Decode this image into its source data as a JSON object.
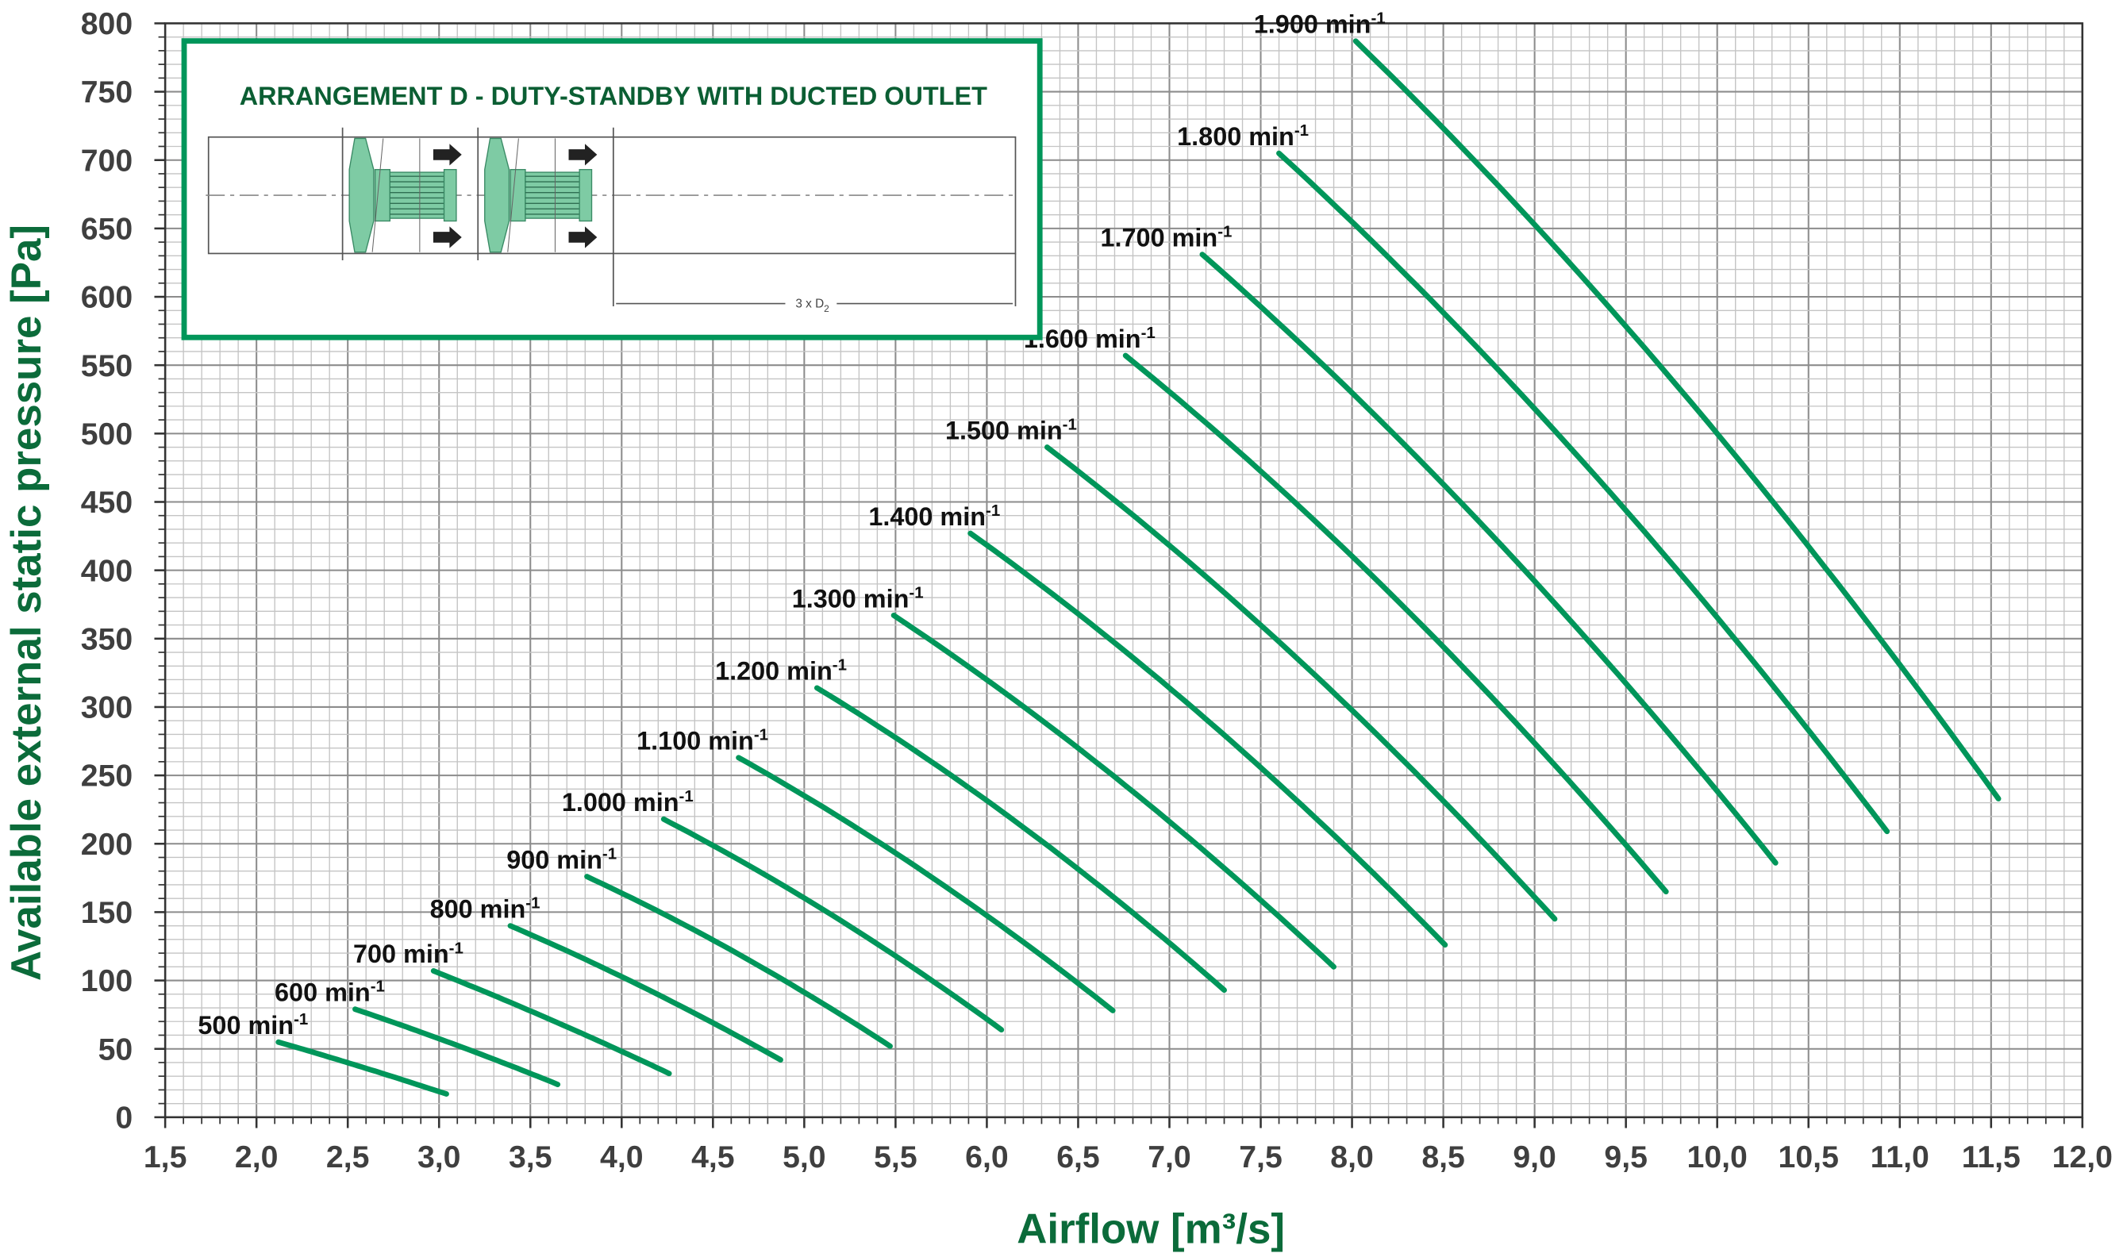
{
  "chart_data": {
    "type": "line",
    "xlabel": "Airflow [m³/s]",
    "ylabel": "Available external static pressure [Pa]",
    "xlim": [
      1.5,
      12.0
    ],
    "ylim": [
      0,
      800
    ],
    "x_ticks": [
      "1,5",
      "2,0",
      "2,5",
      "3,0",
      "3,5",
      "4,0",
      "4,5",
      "5,0",
      "5,5",
      "6,0",
      "6,5",
      "7,0",
      "7,5",
      "8,0",
      "8,5",
      "9,0",
      "9,5",
      "10,0",
      "10,5",
      "11,0",
      "11,5",
      "12,0"
    ],
    "y_ticks": [
      "0",
      "50",
      "100",
      "150",
      "200",
      "250",
      "300",
      "350",
      "400",
      "450",
      "500",
      "550",
      "600",
      "650",
      "700",
      "750",
      "800"
    ],
    "grid": true,
    "line_color": "#00965a",
    "series": [
      {
        "name": "500 min-1",
        "label": "500 min",
        "sup": "-1",
        "x": [
          2.12,
          2.57,
          3.04
        ],
        "y": [
          55,
          37,
          17
        ]
      },
      {
        "name": "600 min-1",
        "label": "600 min",
        "sup": "-1",
        "x": [
          2.54,
          3.09,
          3.65
        ],
        "y": [
          79,
          53,
          24
        ]
      },
      {
        "name": "700 min-1",
        "label": "700 min",
        "sup": "-1",
        "x": [
          2.97,
          3.6,
          4.26
        ],
        "y": [
          107,
          72,
          32
        ]
      },
      {
        "name": "800 min-1",
        "label": "800 min",
        "sup": "-1",
        "x": [
          3.39,
          4.12,
          4.87
        ],
        "y": [
          140,
          95,
          42
        ]
      },
      {
        "name": "900 min-1",
        "label": "900 min",
        "sup": "-1",
        "x": [
          3.81,
          4.63,
          5.47
        ],
        "y": [
          176,
          120,
          52
        ]
      },
      {
        "name": "1.000 min-1",
        "label": "1.000 min",
        "sup": "-1",
        "x": [
          4.23,
          5.15,
          6.08
        ],
        "y": [
          218,
          148,
          64
        ]
      },
      {
        "name": "1.100 min-1",
        "label": "1.100 min",
        "sup": "-1",
        "x": [
          4.64,
          5.66,
          6.69
        ],
        "y": [
          263,
          179,
          78
        ]
      },
      {
        "name": "1.200 min-1",
        "label": "1.200 min",
        "sup": "-1",
        "x": [
          5.07,
          6.18,
          7.3
        ],
        "y": [
          314,
          214,
          93
        ]
      },
      {
        "name": "1.300 min-1",
        "label": "1.300 min",
        "sup": "-1",
        "x": [
          5.49,
          6.69,
          7.9
        ],
        "y": [
          367,
          250,
          110
        ]
      },
      {
        "name": "1.400 min-1",
        "label": "1.400 min",
        "sup": "-1",
        "x": [
          5.91,
          7.21,
          8.51
        ],
        "y": [
          427,
          290,
          126
        ]
      },
      {
        "name": "1.500 min-1",
        "label": "1.500 min",
        "sup": "-1",
        "x": [
          6.33,
          7.72,
          9.11
        ],
        "y": [
          490,
          333,
          145
        ]
      },
      {
        "name": "1.600 min-1",
        "label": "1.600 min",
        "sup": "-1",
        "x": [
          6.76,
          8.24,
          9.72
        ],
        "y": [
          557,
          379,
          165
        ]
      },
      {
        "name": "1.700 min-1",
        "label": "1.700 min",
        "sup": "-1",
        "x": [
          7.18,
          8.75,
          10.32
        ],
        "y": [
          631,
          428,
          186
        ]
      },
      {
        "name": "1.800 min-1",
        "label": "1.800 min",
        "sup": "-1",
        "x": [
          7.6,
          9.26,
          10.93
        ],
        "y": [
          705,
          480,
          209
        ]
      },
      {
        "name": "1.900 min-1",
        "label": "1.900 min",
        "sup": "-1",
        "x": [
          8.02,
          9.78,
          11.54
        ],
        "y": [
          787,
          535,
          233
        ]
      }
    ]
  },
  "inset": {
    "title": "ARRANGEMENT D - DUTY-STANDBY WITH DUCTED OUTLET",
    "dimension_label": "3 x D",
    "dimension_sub": "2",
    "accent": "#00965a",
    "fan_color": "#7ecba4"
  }
}
